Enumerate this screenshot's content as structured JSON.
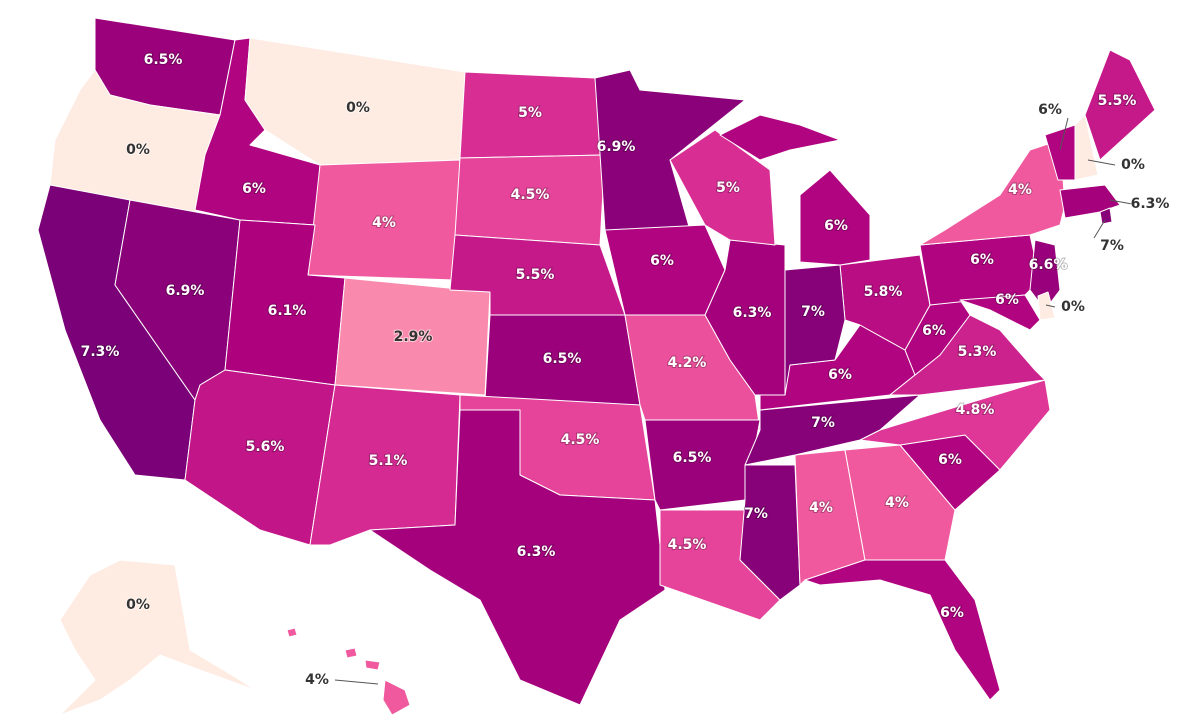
{
  "chart_data": {
    "type": "choropleth",
    "values": [
      6.5,
      0,
      7.3,
      6.9,
      6,
      0,
      4,
      6.1,
      5.6,
      2.9,
      5.1,
      5,
      4.5,
      5.5,
      6.5,
      4.5,
      6.3,
      6.9,
      6,
      4.2,
      6.5,
      4.5,
      7,
      4,
      4,
      6,
      6,
      4.8,
      7,
      6,
      5.3,
      6,
      5.8,
      7,
      6.3,
      5,
      6,
      6,
      4,
      6.6,
      0,
      6,
      6,
      0,
      5.5,
      6.3,
      7,
      0,
      4
    ],
    "value_labels": [
      "6.5%",
      "0%",
      "7.3%",
      "6.9%",
      "6%",
      "0%",
      "4%",
      "6.1%",
      "5.6%",
      "2.9%",
      "5.1%",
      "5%",
      "4.5%",
      "5.5%",
      "6.5%",
      "4.5%",
      "6.3%",
      "6.9%",
      "6%",
      "4.2%",
      "6.5%",
      "4.5%",
      "7%",
      "4%",
      "4%",
      "6%",
      "6%",
      "4.8%",
      "7%",
      "6%",
      "5.3%",
      "6%",
      "5.8%",
      "7%",
      "6.3%",
      "5%",
      "6%",
      "6%",
      "4%",
      "6.6%",
      "0%",
      "6%",
      "6%",
      "0%",
      "5.5%",
      "6.3%",
      "7%",
      "0%",
      "4%"
    ],
    "colors": [
      "#feebe2",
      "#fcc5c0",
      "#fa9fb5",
      "#f768a1",
      "#dd3497",
      "#ae017e",
      "#7a0177"
    ]
  }
}
